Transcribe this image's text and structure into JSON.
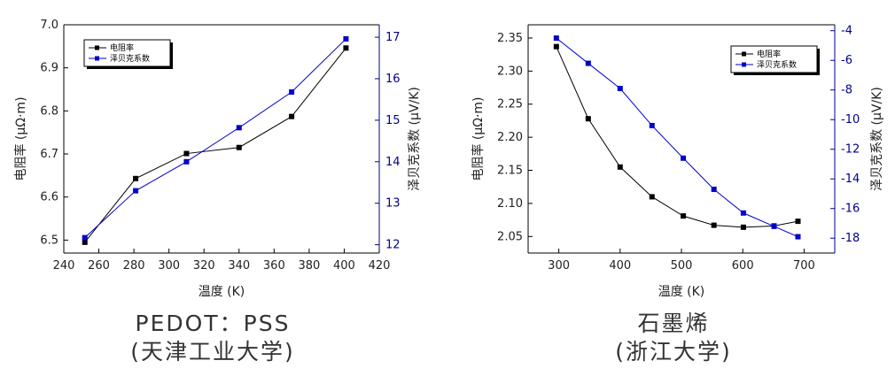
{
  "colors": {
    "black_series": "#000000",
    "blue_series": "#0000cc",
    "right_axis": "#00008b"
  },
  "captions": [
    {
      "line1": "PEDOT：PSS",
      "line2": "(天津工业大学)"
    },
    {
      "line1": "石墨烯",
      "line2": "(浙江大学)"
    }
  ],
  "chart_data": [
    {
      "type": "line",
      "xlabel": "温度 (K)",
      "ylabel": "电阻率 (μΩ·m)",
      "y2label": "泽贝克系数 (μV/K)",
      "xlim": [
        240,
        420
      ],
      "ylim": [
        6.47,
        7.0
      ],
      "y2lim": [
        11.8,
        17.3
      ],
      "xticks": [
        "240",
        "260",
        "280",
        "300",
        "320",
        "340",
        "360",
        "380",
        "400",
        "420"
      ],
      "yticks": [
        "6.5",
        "6.6",
        "6.7",
        "6.8",
        "6.9",
        "7.0"
      ],
      "y2ticks": [
        "12",
        "13",
        "14",
        "15",
        "16",
        "17"
      ],
      "legend_position": "top-left",
      "series": [
        {
          "name": "电阻率",
          "axis": "left",
          "color": "#000000",
          "x": [
            252,
            281,
            310,
            340,
            370,
            401
          ],
          "y": [
            6.495,
            6.643,
            6.701,
            6.715,
            6.787,
            6.946
          ]
        },
        {
          "name": "泽贝克系数",
          "axis": "right",
          "color": "#0000cc",
          "x": [
            252,
            281,
            310,
            340,
            370,
            401
          ],
          "y": [
            12.17,
            13.3,
            14.0,
            14.82,
            15.68,
            16.96
          ]
        }
      ]
    },
    {
      "type": "line",
      "xlabel": "温度 (K)",
      "ylabel": "电阻率 (μΩ·m)",
      "y2label": "泽贝克系数 (μV/K)",
      "xlim": [
        250,
        750
      ],
      "ylim": [
        2.025,
        2.37
      ],
      "y2lim": [
        -19.0,
        -3.6
      ],
      "xticks": [
        "300",
        "400",
        "500",
        "600",
        "700"
      ],
      "yticks": [
        "2.05",
        "2.10",
        "2.15",
        "2.20",
        "2.25",
        "2.30",
        "2.35"
      ],
      "y2ticks": [
        "-4",
        "-6",
        "-8",
        "-10",
        "-12",
        "-14",
        "-16",
        "-18"
      ],
      "legend_position": "top-right",
      "series": [
        {
          "name": "电阻率",
          "axis": "left",
          "color": "#000000",
          "x": [
            296,
            348,
            400,
            452,
            503,
            553,
            601,
            651,
            690
          ],
          "y": [
            2.337,
            2.228,
            2.155,
            2.11,
            2.081,
            2.067,
            2.064,
            2.066,
            2.073
          ]
        },
        {
          "name": "泽贝克系数",
          "axis": "right",
          "color": "#0000cc",
          "x": [
            296,
            348,
            400,
            452,
            503,
            553,
            601,
            651,
            690
          ],
          "y": [
            -4.5,
            -6.2,
            -7.9,
            -10.4,
            -12.6,
            -14.7,
            -16.3,
            -17.2,
            -17.9
          ]
        }
      ]
    }
  ]
}
